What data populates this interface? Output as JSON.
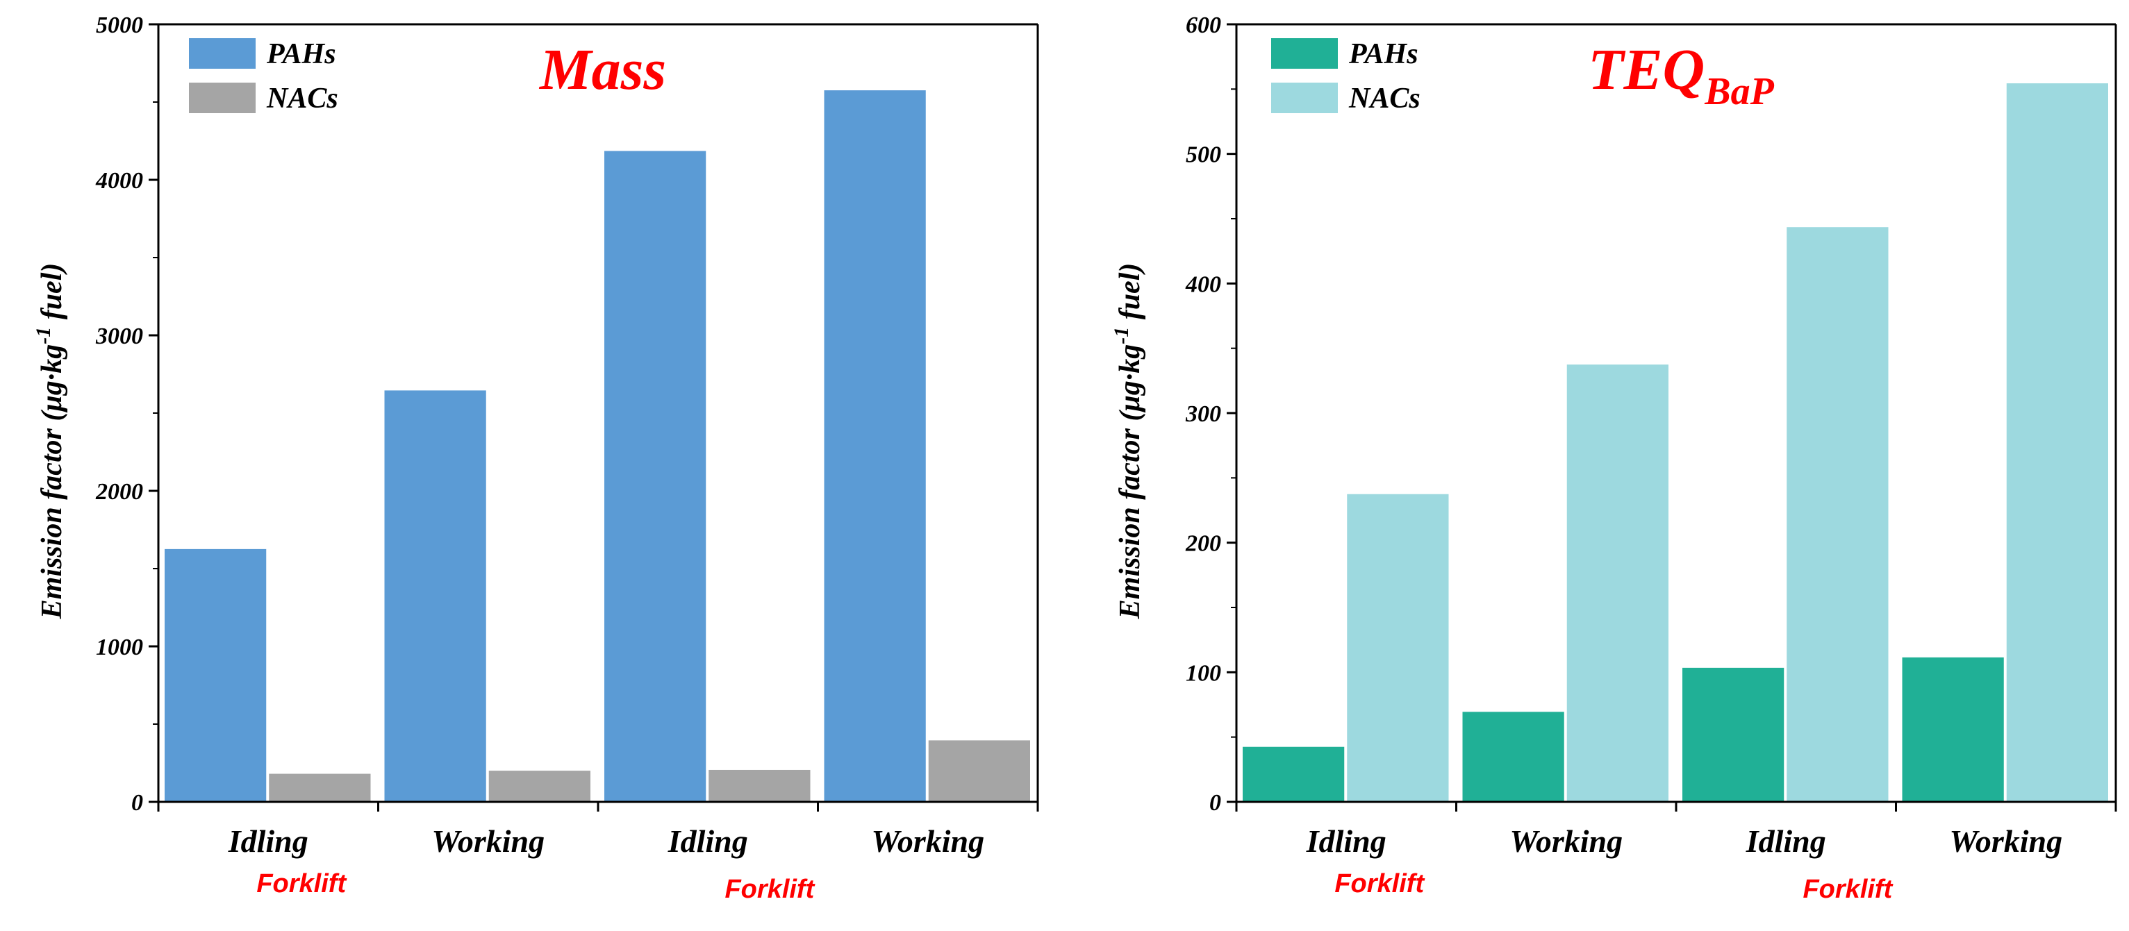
{
  "chart_data": [
    {
      "type": "bar",
      "title": "Mass",
      "title_sub": "",
      "title_color": "#ff0000",
      "ylabel": "Emission factor (μg·kg",
      "ylabel_sup": "-1",
      "ylabel_end": " fuel)",
      "ylim": [
        0,
        5000
      ],
      "yticks": [
        0,
        1000,
        2000,
        3000,
        4000,
        5000
      ],
      "yticks_labels": [
        "0",
        "1000",
        "2000",
        "3000",
        "4000",
        "5000"
      ],
      "categories": [
        "Idling",
        "Working",
        "Idling",
        "Working"
      ],
      "group_labels": [
        "Forklift",
        "Forklift"
      ],
      "legend_position": "top-left",
      "grid": false,
      "series": [
        {
          "name": "PAHs",
          "color": "#5b9bd5",
          "values": [
            1630,
            2650,
            4190,
            4580
          ]
        },
        {
          "name": "NACs",
          "color": "#a5a5a5",
          "values": [
            185,
            205,
            210,
            400
          ]
        }
      ]
    },
    {
      "type": "bar",
      "title": "TEQ",
      "title_sub": "BaP",
      "title_color": "#ff0000",
      "ylabel": "Emission factor (μg·kg",
      "ylabel_sup": "-1",
      "ylabel_end": " fuel)",
      "ylim": [
        0,
        600
      ],
      "yticks": [
        0,
        100,
        200,
        300,
        400,
        500,
        600
      ],
      "yticks_labels": [
        "0",
        "100",
        "200",
        "300",
        "400",
        "500",
        "600"
      ],
      "categories": [
        "Idling",
        "Working",
        "Idling",
        "Working"
      ],
      "group_labels": [
        "Forklift",
        "Forklift"
      ],
      "legend_position": "top-left",
      "grid": false,
      "series": [
        {
          "name": "PAHs",
          "color": "#20b096",
          "values": [
            43,
            70,
            104,
            112
          ]
        },
        {
          "name": "NACs",
          "color": "#9dd9df",
          "values": [
            238,
            338,
            444,
            555
          ]
        }
      ]
    }
  ]
}
